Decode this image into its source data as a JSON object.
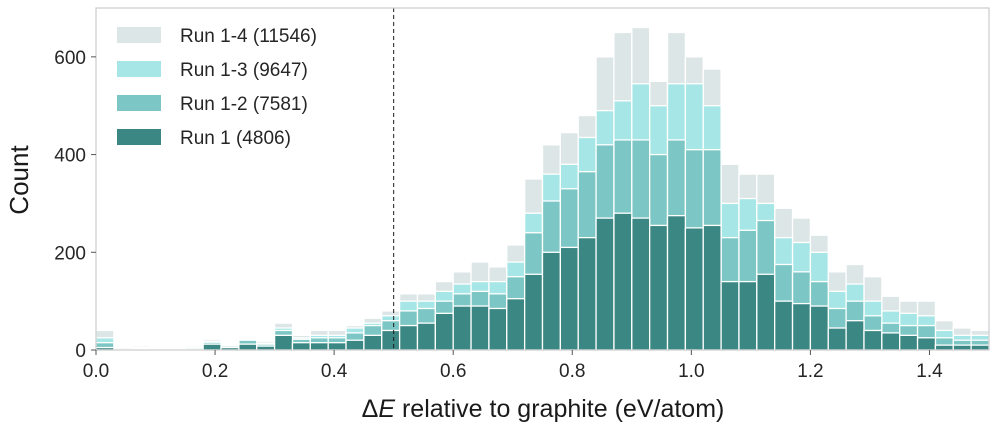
{
  "chart_data": {
    "type": "bar",
    "stacked_histogram": true,
    "xlabel": "ΔE relative to graphite (eV/atom)",
    "ylabel": "Count",
    "xlim": [
      0,
      1.5
    ],
    "ylim": [
      0,
      700
    ],
    "xticks": [
      "0.0",
      "0.2",
      "0.4",
      "0.6",
      "0.8",
      "1.0",
      "1.2",
      "1.4"
    ],
    "xtick_values": [
      0.0,
      0.2,
      0.4,
      0.6,
      0.8,
      1.0,
      1.2,
      1.4
    ],
    "yticks": [
      "0",
      "200",
      "400",
      "600"
    ],
    "ytick_values": [
      0,
      200,
      400,
      600
    ],
    "vline_x": 0.5,
    "grid": false,
    "legend_position": "top-left",
    "bin_width": 0.03,
    "bin_starts": [
      0.0,
      0.03,
      0.06,
      0.09,
      0.12,
      0.15,
      0.18,
      0.21,
      0.24,
      0.27,
      0.3,
      0.33,
      0.36,
      0.39,
      0.42,
      0.45,
      0.48,
      0.51,
      0.54,
      0.57,
      0.6,
      0.63,
      0.66,
      0.69,
      0.72,
      0.75,
      0.78,
      0.81,
      0.84,
      0.87,
      0.9,
      0.93,
      0.96,
      0.99,
      1.02,
      1.05,
      1.08,
      1.11,
      1.14,
      1.17,
      1.2,
      1.23,
      1.26,
      1.29,
      1.32,
      1.35,
      1.38,
      1.41,
      1.44,
      1.47
    ],
    "series": [
      {
        "name": "Run 1 (4806)",
        "color": "#3b8784",
        "values": [
          5,
          0,
          2,
          0,
          0,
          0,
          12,
          5,
          12,
          8,
          30,
          15,
          15,
          15,
          20,
          30,
          40,
          50,
          55,
          75,
          90,
          90,
          85,
          105,
          155,
          200,
          210,
          230,
          270,
          280,
          270,
          255,
          275,
          250,
          255,
          140,
          140,
          155,
          100,
          95,
          90,
          45,
          60,
          40,
          35,
          30,
          25,
          10,
          10,
          10
        ]
      },
      {
        "name": "Run 1-2 (7581)",
        "color": "#7cc7c5",
        "values": [
          15,
          0,
          3,
          0,
          0,
          2,
          16,
          8,
          20,
          12,
          40,
          22,
          25,
          25,
          35,
          50,
          60,
          80,
          85,
          100,
          115,
          120,
          115,
          150,
          240,
          305,
          330,
          365,
          420,
          430,
          430,
          400,
          430,
          410,
          410,
          230,
          245,
          265,
          175,
          160,
          140,
          85,
          100,
          70,
          55,
          50,
          50,
          25,
          20,
          20
        ]
      },
      {
        "name": "Run 1-3 (9647)",
        "color": "#a6e6e6",
        "values": [
          25,
          2,
          5,
          0,
          0,
          5,
          18,
          8,
          22,
          14,
          45,
          25,
          30,
          30,
          45,
          55,
          70,
          100,
          100,
          120,
          135,
          140,
          140,
          180,
          280,
          360,
          380,
          435,
          490,
          510,
          545,
          500,
          545,
          545,
          500,
          300,
          310,
          300,
          230,
          220,
          200,
          120,
          135,
          100,
          80,
          75,
          70,
          40,
          30,
          30
        ]
      },
      {
        "name": "Run 1-4 (11546)",
        "color": "#dde6e6",
        "values": [
          40,
          5,
          8,
          2,
          2,
          8,
          22,
          10,
          25,
          18,
          55,
          30,
          40,
          40,
          50,
          65,
          80,
          115,
          115,
          140,
          160,
          180,
          170,
          215,
          350,
          420,
          445,
          480,
          600,
          650,
          660,
          550,
          650,
          600,
          575,
          380,
          360,
          360,
          290,
          270,
          235,
          160,
          175,
          150,
          110,
          100,
          100,
          60,
          45,
          40
        ]
      }
    ]
  }
}
